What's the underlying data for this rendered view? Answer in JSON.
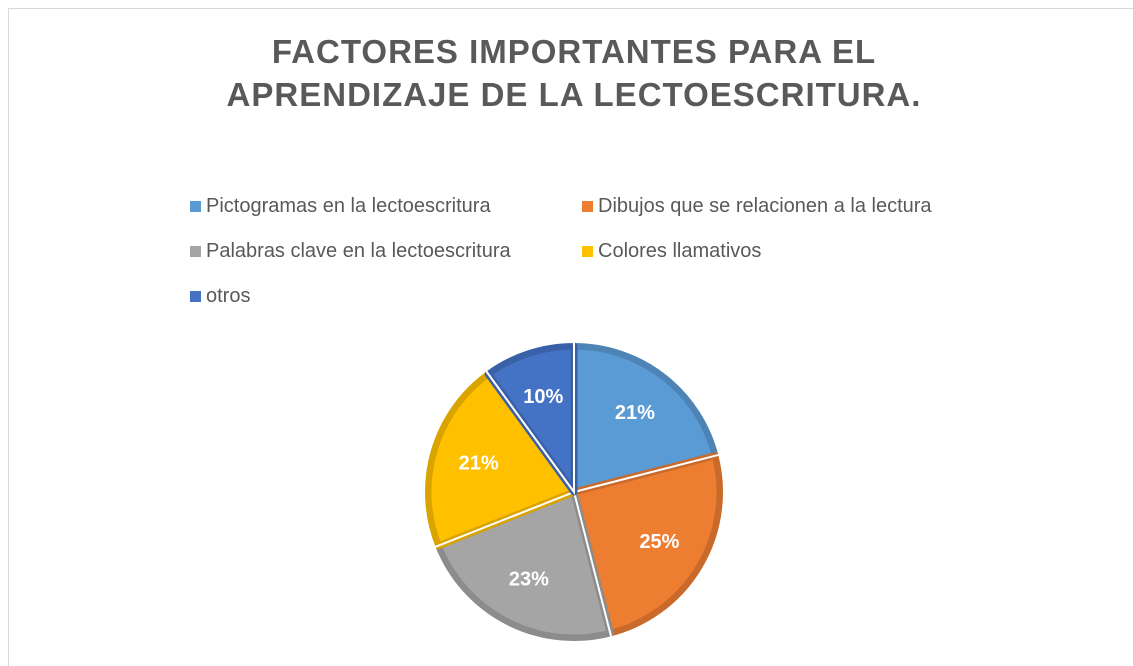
{
  "chart_data": {
    "type": "pie",
    "title": "FACTORES IMPORTANTES PARA EL APRENDIZAJE DE LA LECTOESCRITURA.",
    "categories": [
      "Pictogramas en la lectoescritura",
      "Dibujos que se relacionen a la lectura",
      "Palabras clave en la lectoescritura",
      "Colores llamativos",
      "otros"
    ],
    "values": [
      21,
      25,
      23,
      21,
      10
    ],
    "value_labels": [
      "21%",
      "25%",
      "23%",
      "21%",
      "10%"
    ],
    "colors": [
      "#5b9bd5",
      "#ed7d31",
      "#a5a5a5",
      "#ffc000",
      "#4472c4"
    ],
    "legend": "top"
  }
}
